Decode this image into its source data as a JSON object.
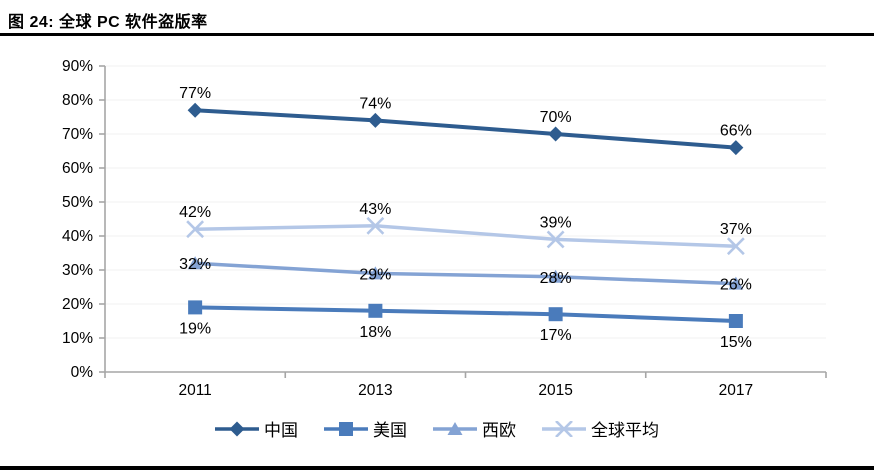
{
  "page": {
    "title": "图 24:  全球 PC 软件盗版率"
  },
  "chart_data": {
    "type": "line",
    "title": "全球 PC 软件盗版率",
    "categories": [
      "2011",
      "2013",
      "2015",
      "2017"
    ],
    "series": [
      {
        "name": "中国",
        "values": [
          77,
          74,
          70,
          66
        ],
        "color": "#2E5C8F",
        "marker": "diamond",
        "label_position": "above",
        "line_width": 4
      },
      {
        "name": "美国",
        "values": [
          19,
          18,
          17,
          15
        ],
        "color": "#4A7BBB",
        "marker": "square",
        "label_position": "below",
        "line_width": 4
      },
      {
        "name": "西欧",
        "values": [
          32,
          29,
          28,
          26
        ],
        "color": "#84A3D4",
        "marker": "triangle",
        "label_position": "center",
        "line_width": 3.5
      },
      {
        "name": "全球平均",
        "values": [
          42,
          43,
          39,
          37
        ],
        "color": "#B4C7E7",
        "marker": "x",
        "label_position": "above",
        "line_width": 3.5
      }
    ],
    "ylim": [
      0,
      90
    ],
    "y_ticks": [
      "0%",
      "10%",
      "20%",
      "30%",
      "40%",
      "50%",
      "60%",
      "70%",
      "80%",
      "90%"
    ],
    "value_suffix": "%",
    "grid": true,
    "legend_position": "bottom",
    "colors": {
      "axis": "#A6A6A6",
      "gridline": "#F0F0F0",
      "label_text": "#000000"
    }
  }
}
